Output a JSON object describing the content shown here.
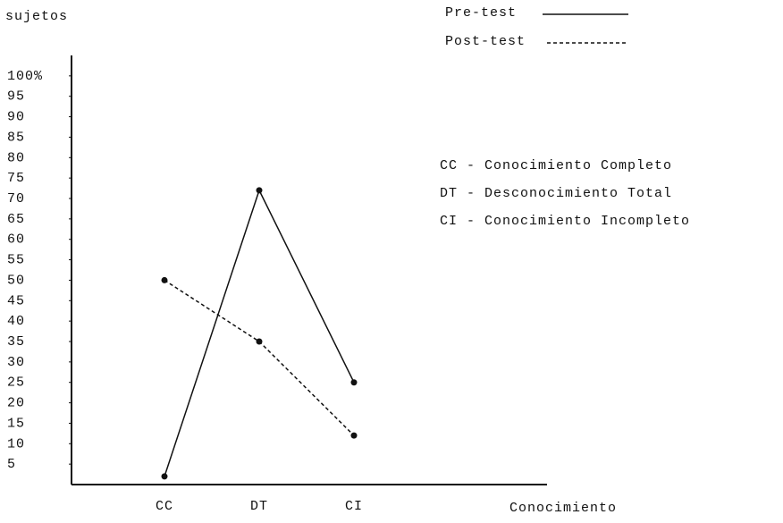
{
  "chart_data": {
    "type": "line",
    "y_label": "sujetos",
    "x_label": "Conocimiento",
    "categories": [
      "CC",
      "DT",
      "CI"
    ],
    "series": [
      {
        "name": "Pre-test",
        "color": "#111111",
        "dash": false,
        "values": [
          2,
          72,
          25
        ]
      },
      {
        "name": "Post-test",
        "color": "#111111",
        "dash": true,
        "values": [
          50,
          35,
          12
        ]
      }
    ],
    "ylim": [
      0,
      105
    ],
    "yticks": [
      5,
      10,
      15,
      20,
      25,
      30,
      35,
      40,
      45,
      50,
      55,
      60,
      65,
      70,
      75,
      80,
      85,
      90,
      95,
      {
        "value": 100,
        "label": "100%"
      }
    ],
    "notes": [
      "CC - Conocimiento Completo",
      "DT - Desconocimiento Total",
      "CI - Conocimiento Incompleto"
    ],
    "legend": "top-right",
    "grid": false
  }
}
